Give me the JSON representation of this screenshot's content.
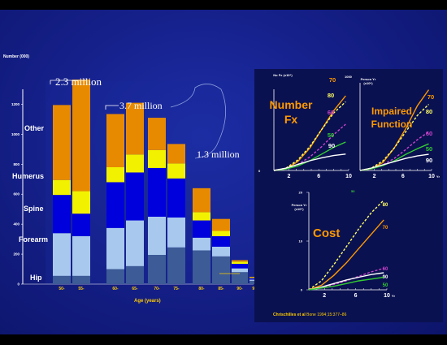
{
  "colors": {
    "hip": "#3d5b96",
    "forearm": "#a9c8ee",
    "spine": "#0000dd",
    "humerus": "#f2f200",
    "other": "#e88a00",
    "axis": "#ffffff",
    "accent_orange": "#ff9900",
    "panel_bg": "#0a1150",
    "background": "#15208a"
  },
  "chart_data": [
    {
      "type": "bar",
      "stacked": true,
      "title": "",
      "ylabel": "Number (000)",
      "xlabel": "Age (years)",
      "ylim": [
        0,
        1300
      ],
      "yticks": [
        "0",
        "200",
        "400",
        "600",
        "800",
        "1000",
        "1200"
      ],
      "categories": [
        "50-",
        "55-",
        "60-",
        "65-",
        "70-",
        "75-",
        "80-",
        "85-",
        "90-",
        "95-"
      ],
      "series_labels": [
        "Hip",
        "Forearm",
        "Spine",
        "Humerus",
        "Other"
      ],
      "groups": [
        {
          "bars": [
            {
              "label": "50-",
              "values": [
                55,
                285,
                255,
                100,
                500
              ]
            },
            {
              "label": "55-",
              "values": [
                55,
                265,
                150,
                150,
                745
              ]
            }
          ]
        },
        {
          "bars": [
            {
              "label": "60-",
              "values": [
                100,
                275,
                305,
                100,
                355
              ]
            },
            {
              "label": "65-",
              "values": [
                120,
                305,
                320,
                120,
                345
              ]
            }
          ]
        },
        {
          "bars": [
            {
              "label": "70-",
              "values": [
                195,
                255,
                325,
                120,
                215
              ]
            },
            {
              "label": "75-",
              "values": [
                245,
                200,
                260,
                100,
                130
              ]
            }
          ]
        },
        {
          "bars": [
            {
              "label": "80-",
              "values": [
                225,
                85,
                115,
                55,
                160
              ]
            },
            {
              "label": "85-",
              "values": [
                185,
                65,
                70,
                35,
                80
              ]
            },
            {
              "label": "90-",
              "values": [
                80,
                25,
                30,
                15,
                10
              ]
            },
            {
              "label": "95-",
              "values": [
                22,
                8,
                10,
                5,
                4
              ]
            }
          ]
        }
      ],
      "annotations": [
        "2.3 million",
        "3.7 million",
        "1.3 million"
      ]
    },
    {
      "type": "line",
      "title": "Number Fx",
      "ylabel": "No Fx (x10⁶)",
      "xticks": [
        "2",
        "6",
        "10"
      ],
      "y_tick_labels": [
        "0"
      ],
      "series": [
        {
          "name": "70",
          "color": "#ff9900",
          "dash": false,
          "values": [
            0.0,
            0.02,
            0.12,
            0.3,
            0.55,
            0.8,
            1.0
          ]
        },
        {
          "name": "80",
          "color": "#ffff66",
          "dash": true,
          "values": [
            0.0,
            0.03,
            0.14,
            0.32,
            0.55,
            0.77,
            0.92
          ]
        },
        {
          "name": "60",
          "color": "#cc44cc",
          "dash": true,
          "values": [
            0.0,
            0.02,
            0.08,
            0.18,
            0.32,
            0.48,
            0.62
          ]
        },
        {
          "name": "50",
          "color": "#33cc33",
          "dash": false,
          "values": [
            0.0,
            0.02,
            0.06,
            0.13,
            0.22,
            0.31,
            0.38
          ]
        },
        {
          "name": "90",
          "color": "#ffffff",
          "dash": false,
          "values": [
            0.0,
            0.03,
            0.08,
            0.13,
            0.17,
            0.2,
            0.22
          ]
        }
      ]
    },
    {
      "type": "line",
      "title": "Impaired Function",
      "ylabel": "Person Yr (x10⁶)",
      "xticks": [
        "2",
        "6",
        "10"
      ],
      "x_unit": "Yr",
      "y_tick_labels": [
        "1000"
      ],
      "series": [
        {
          "name": "70",
          "color": "#ff9900",
          "dash": false,
          "values": [
            0.0,
            0.02,
            0.1,
            0.28,
            0.52,
            0.8,
            1.0
          ]
        },
        {
          "name": "80",
          "color": "#ffff66",
          "dash": true,
          "values": [
            0.0,
            0.03,
            0.12,
            0.28,
            0.48,
            0.68,
            0.82
          ]
        },
        {
          "name": "60",
          "color": "#cc44cc",
          "dash": true,
          "values": [
            0.0,
            0.02,
            0.07,
            0.15,
            0.26,
            0.38,
            0.48
          ]
        },
        {
          "name": "50",
          "color": "#33cc33",
          "dash": false,
          "values": [
            0.0,
            0.02,
            0.06,
            0.12,
            0.2,
            0.27,
            0.33
          ]
        },
        {
          "name": "90",
          "color": "#ffffff",
          "dash": false,
          "values": [
            0.0,
            0.03,
            0.07,
            0.11,
            0.15,
            0.18,
            0.2
          ]
        }
      ]
    },
    {
      "type": "line",
      "title": "Cost",
      "ylabel": "Person Yr (x10⁶)",
      "xticks": [
        "2",
        "6",
        "10"
      ],
      "x_unit": "Yr",
      "y_tick_labels": [
        "0",
        "10",
        "20"
      ],
      "series": [
        {
          "name": "80",
          "color": "#ffff66",
          "dash": true,
          "values": [
            0.0,
            0.1,
            0.28,
            0.48,
            0.68,
            0.86,
            1.0
          ]
        },
        {
          "name": "70",
          "color": "#ff9900",
          "dash": false,
          "values": [
            0.0,
            0.05,
            0.16,
            0.3,
            0.46,
            0.62,
            0.78
          ]
        },
        {
          "name": "60",
          "color": "#cc44cc",
          "dash": true,
          "values": [
            0.0,
            0.02,
            0.06,
            0.1,
            0.15,
            0.2,
            0.24
          ]
        },
        {
          "name": "90",
          "color": "#ffffff",
          "dash": false,
          "values": [
            0.0,
            0.03,
            0.07,
            0.11,
            0.14,
            0.17,
            0.19
          ]
        },
        {
          "name": "50",
          "color": "#33cc33",
          "dash": false,
          "values": [
            0.0,
            0.02,
            0.04,
            0.07,
            0.1,
            0.12,
            0.14
          ]
        }
      ]
    }
  ],
  "panels_extra": {
    "cost_axis_top_label": "50",
    "fx_y_top": "0",
    "ifn_y_top": "1000"
  },
  "citation": {
    "authors": "Chrischilles  et al",
    "journal": "Bone 1994;15:377–86"
  }
}
